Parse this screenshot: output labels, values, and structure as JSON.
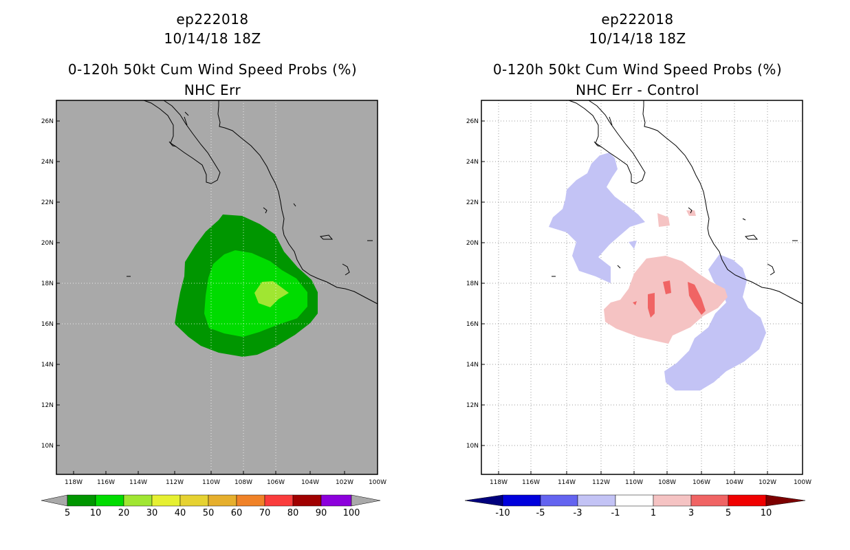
{
  "left": {
    "storm_id": "ep222018",
    "datetime": "10/14/18 18Z",
    "product": "0-120h 50kt Cum Wind Speed Probs (%)",
    "subtitle": "NHC Err",
    "lat_labels": [
      "26N",
      "24N",
      "22N",
      "20N",
      "18N",
      "16N",
      "14N",
      "12N",
      "10N"
    ],
    "lon_labels": [
      "118W",
      "116W",
      "114W",
      "112W",
      "110W",
      "108W",
      "106W",
      "104W",
      "102W",
      "100W"
    ],
    "colorbar": {
      "labels": [
        "5",
        "10",
        "20",
        "30",
        "40",
        "50",
        "60",
        "70",
        "80",
        "90",
        "100"
      ],
      "colors": [
        "#009600",
        "#00dc00",
        "#a0e632",
        "#e6f032",
        "#e6d232",
        "#e6af2d",
        "#f08228",
        "#fa3c3c",
        "#a00000",
        "#8c00dc"
      ],
      "under_color": "#a9a9a9",
      "over_color": "#a9a9a9"
    },
    "colors": {
      "background": "#a9a9a9",
      "band_5_10": "#009600",
      "band_10_20": "#00dc00",
      "band_20_30": "#a0e632"
    }
  },
  "right": {
    "storm_id": "ep222018",
    "datetime": "10/14/18 18Z",
    "product": "0-120h 50kt Cum Wind Speed Probs (%)",
    "subtitle": "NHC Err - Control",
    "lat_labels": [
      "26N",
      "24N",
      "22N",
      "20N",
      "18N",
      "16N",
      "14N",
      "12N",
      "10N"
    ],
    "lon_labels": [
      "118W",
      "116W",
      "114W",
      "112W",
      "110W",
      "108W",
      "106W",
      "104W",
      "102W",
      "100W"
    ],
    "colorbar": {
      "labels": [
        "-10",
        "-5",
        "-3",
        "-1",
        "1",
        "3",
        "5",
        "10"
      ],
      "colors": [
        "#0000dc",
        "#6464f0",
        "#c3c3f5",
        "#ffffff",
        "#f5c3c3",
        "#f06464",
        "#f00000"
      ],
      "under_color": "#00007d",
      "over_color": "#7d0000"
    },
    "colors": {
      "neg_1_3": "#c3c3f5",
      "pos_1_3": "#f5c3c3",
      "pos_3_5": "#f06464"
    }
  }
}
